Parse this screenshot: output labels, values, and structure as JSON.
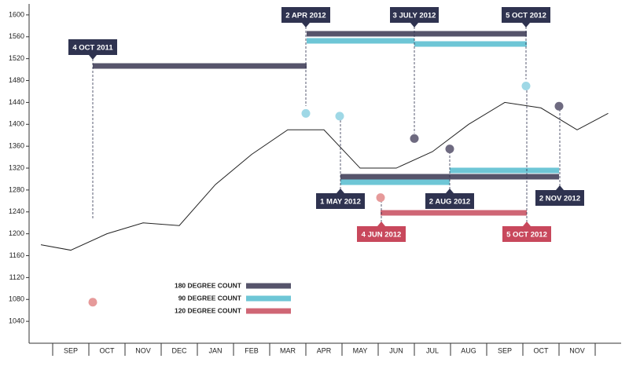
{
  "chart_data": {
    "type": "line",
    "categories": [
      null,
      "SEP",
      "OCT",
      "NOV",
      "DEC",
      "JAN",
      "FEB",
      "MAR",
      "APR",
      "MAY",
      "JUN",
      "JUL",
      "AUG",
      "SEP",
      "OCT",
      "NOV",
      null
    ],
    "values": [
      1180,
      1170,
      1200,
      1220,
      1215,
      1290,
      1345,
      1390,
      1390,
      1320,
      1320,
      1350,
      1400,
      1440,
      1430,
      1390,
      1420
    ],
    "color": "#222222",
    "ylim": [
      1000,
      1620
    ],
    "yticks": [
      1040,
      1080,
      1120,
      1160,
      1200,
      1240,
      1280,
      1320,
      1360,
      1400,
      1440,
      1480,
      1520,
      1560,
      1600
    ],
    "legend": [
      {
        "name": "180 DEGREE COUNT",
        "color": "#56546b"
      },
      {
        "name": "90 DEGREE COUNT",
        "color": "#6ec6d6"
      },
      {
        "name": "120 DEGREE COUNT",
        "color": "#cf6675"
      }
    ],
    "annotations": [
      {
        "label": "4 OCT 2011",
        "color": "#2f3350"
      },
      {
        "label": "2 APR 2012",
        "color": "#2f3350"
      },
      {
        "label": "3 JULY 2012",
        "color": "#2f3350"
      },
      {
        "label": "5 OCT 2012",
        "color": "#2f3350"
      },
      {
        "label": "1 MAY 2012",
        "color": "#2f3350"
      },
      {
        "label": "2 AUG 2012",
        "color": "#2f3350"
      },
      {
        "label": "2 NOV 2012",
        "color": "#2f3350"
      },
      {
        "label": "4 JUN 2012",
        "color": "#c8485c"
      },
      {
        "label": "5 OCT 2012",
        "color": "#c8485c"
      }
    ],
    "pivots": [
      {
        "value": 1075,
        "color": "#e69a9a"
      },
      {
        "value": 1420,
        "color": "#9fd8e6"
      },
      {
        "value": 1415,
        "color": "#9fd8e6"
      },
      {
        "value": 1266,
        "color": "#e69a9a"
      },
      {
        "value": 1374,
        "color": "#6e6a80"
      },
      {
        "value": 1355,
        "color": "#6e6a80"
      },
      {
        "value": 1470,
        "color": "#9fd8e6"
      },
      {
        "value": 1433,
        "color": "#6e6a80"
      }
    ]
  }
}
